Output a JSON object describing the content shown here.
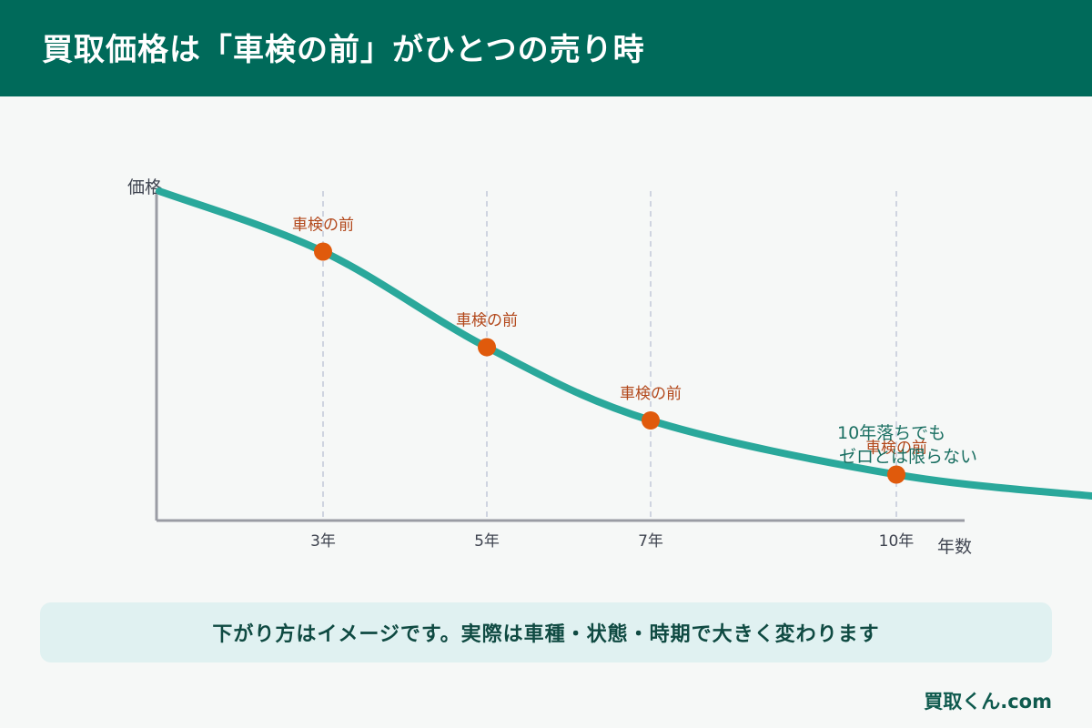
{
  "header": {
    "title": "買取価格は「車検の前」がひとつの売り時"
  },
  "chart_data": {
    "type": "line",
    "ylabel": "価格",
    "xlabel": "年数",
    "x_ticks": [
      {
        "x": 3,
        "label": "3年"
      },
      {
        "x": 5,
        "label": "5年"
      },
      {
        "x": 7,
        "label": "7年"
      },
      {
        "x": 10,
        "label": "10年"
      }
    ],
    "xlim": [
      1,
      11
    ],
    "ylim": [
      0,
      100
    ],
    "grid": "vertical-dashed-at-ticks",
    "curve": {
      "x": [
        1,
        3,
        5,
        7,
        10,
        12.5
      ],
      "y": [
        100,
        81,
        51,
        28,
        11,
        4
      ]
    },
    "markers": [
      {
        "x": 3,
        "y": 81,
        "label": "車検の前"
      },
      {
        "x": 5,
        "y": 51,
        "label": "車検の前"
      },
      {
        "x": 7,
        "y": 28,
        "label": "車検の前"
      },
      {
        "x": 10,
        "y": 11,
        "label": "車検の前"
      }
    ],
    "annotation": {
      "lines": [
        "10年落ちでも",
        "ゼロとは限らない"
      ]
    },
    "colors": {
      "curve": "#2aa89b",
      "marker": "#e05a0c",
      "marker_label": "#b2471a",
      "annotation": "#1a6f62",
      "axis": "#9a9ca4",
      "grid": "#c2c8d8",
      "tick_label": "#3f4450"
    }
  },
  "note": {
    "text": "下がり方はイメージです。実際は車種・状態・時期で大きく変わります"
  },
  "footer": {
    "brand": "買取くん.com"
  }
}
